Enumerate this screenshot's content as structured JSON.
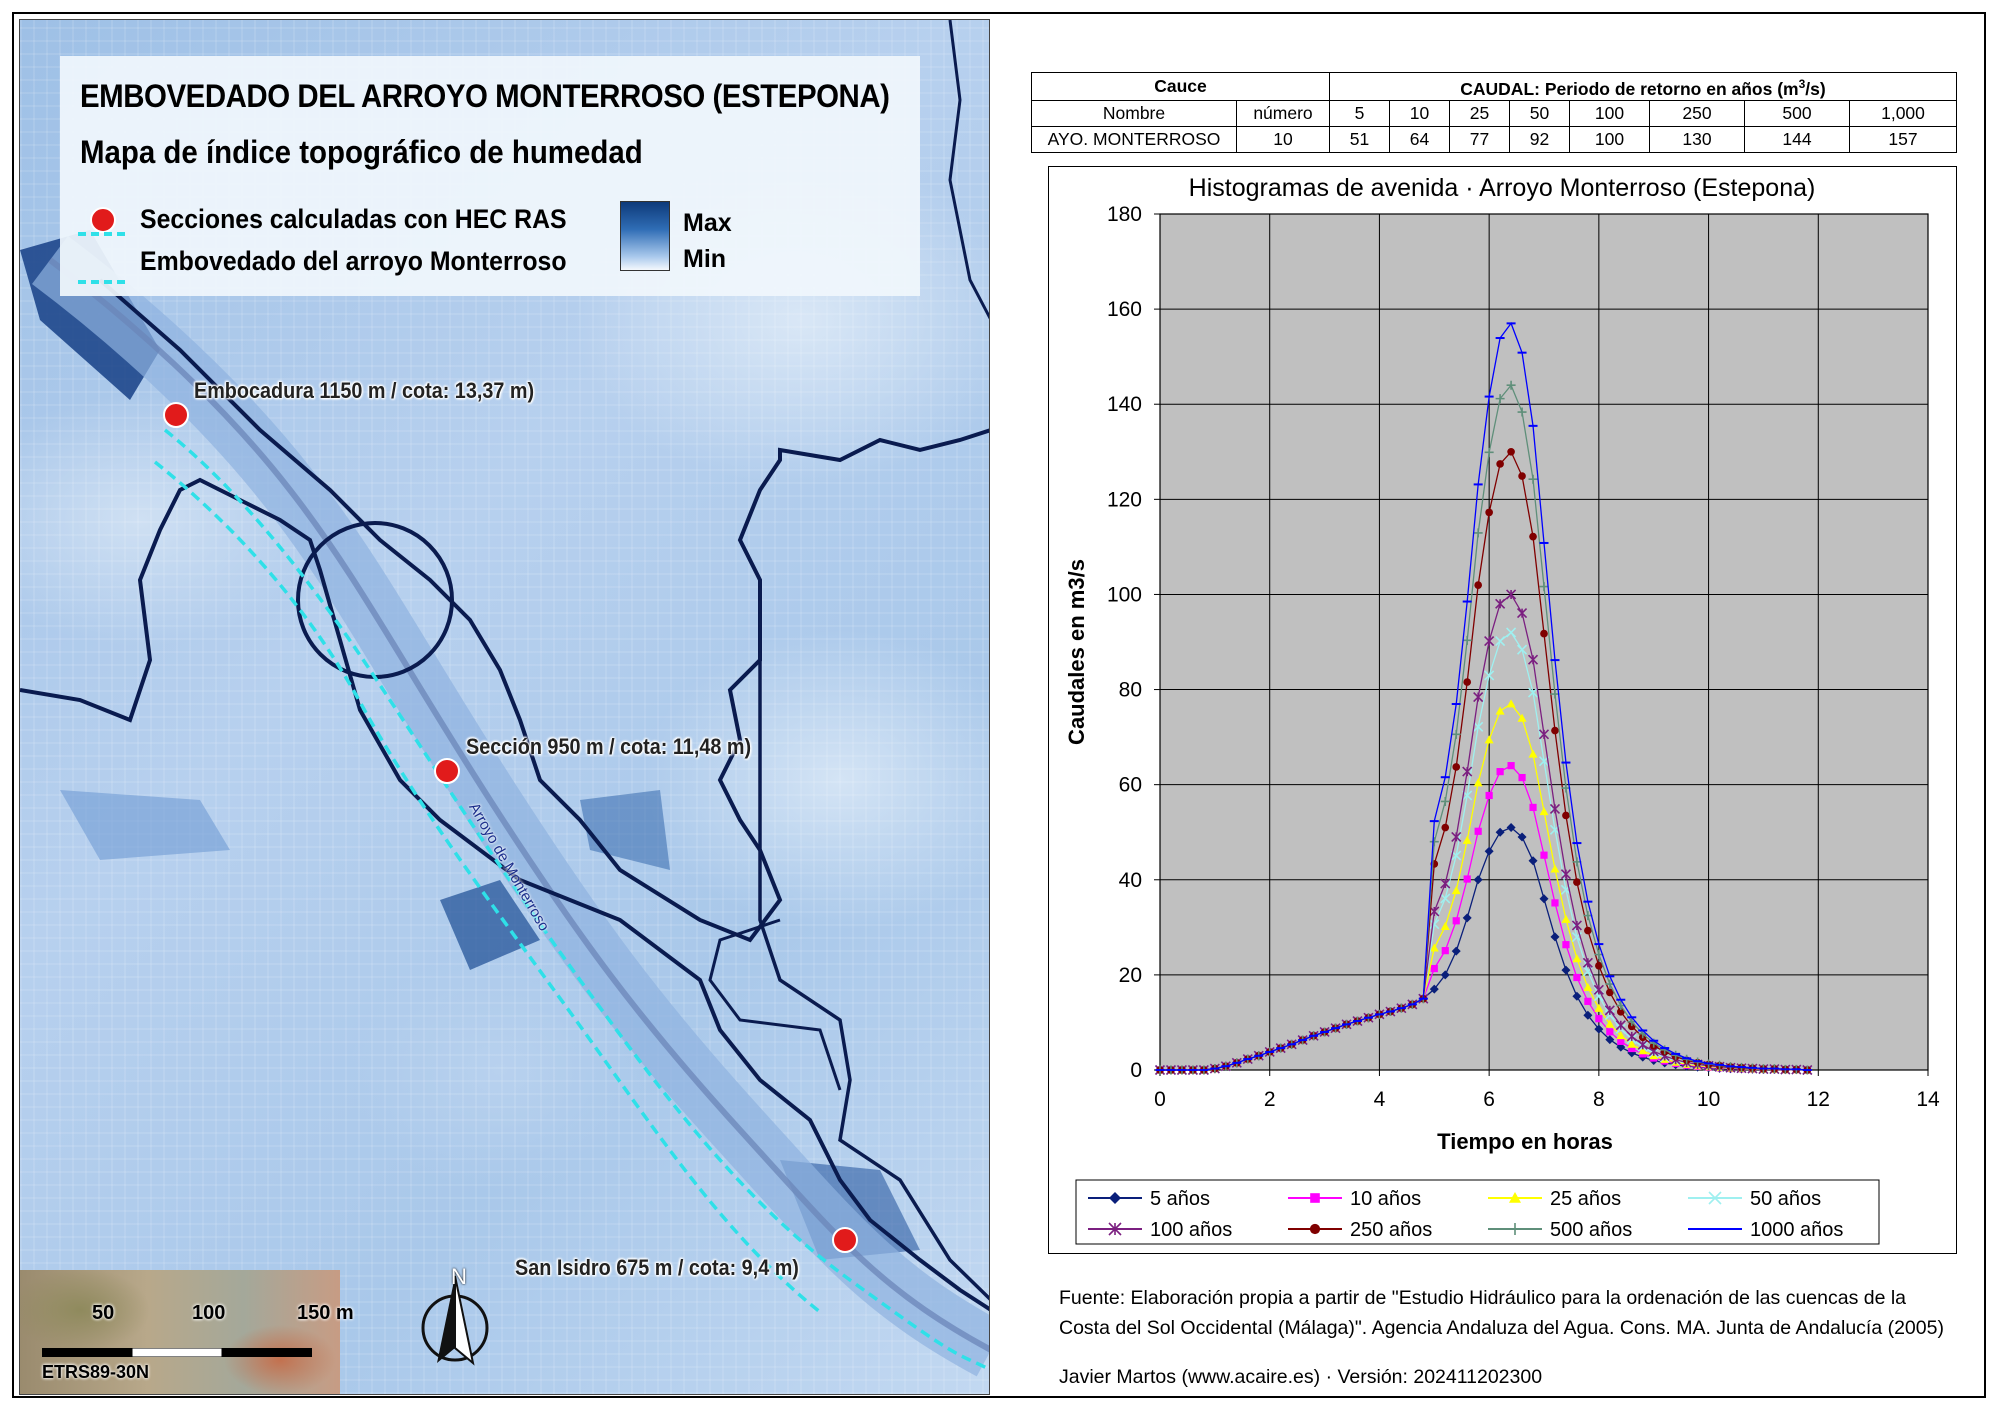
{
  "map": {
    "title": "EMBOVEDADO DEL ARROYO MONTERROSO (ESTEPONA)",
    "subtitle": "Mapa de índice topográfico de humedad",
    "legend": {
      "points_label": "Secciones calculadas con HEC RAS",
      "culvert_label": "Embovedado del arroyo Monterroso",
      "ramp_max": "Max",
      "ramp_min": "Min",
      "point_color": "#e11b1b",
      "culvert_color": "#2fe0e8"
    },
    "sections": [
      {
        "label": "Embocadura 1150 m / cota: 13,37 m)"
      },
      {
        "label": "Sección 950 m / cota: 11,48 m)"
      },
      {
        "label": "San Isidro 675 m / cota: 9,4 m)"
      }
    ],
    "stream_label": "Arroyo de Monterroso",
    "scale": {
      "ticks": [
        "50",
        "100",
        "150 m"
      ],
      "crs": "ETRS89-30N"
    },
    "north": "N"
  },
  "table": {
    "header_cauce": "Cauce",
    "header_caudal_prefix": "CAUDAL: Periodo de retorno en años (m",
    "header_caudal_sup": "3",
    "header_caudal_suffix": "/s)",
    "col_nombre": "Nombre",
    "col_numero": "número",
    "periods": [
      "5",
      "10",
      "25",
      "50",
      "100",
      "250",
      "500",
      "1,000"
    ],
    "row": {
      "nombre": "AYO. MONTERROSO",
      "numero": "10",
      "values": [
        "51",
        "64",
        "77",
        "92",
        "100",
        "130",
        "144",
        "157"
      ]
    }
  },
  "chart_data": {
    "type": "line",
    "title": "Histogramas de avenida · Arroyo Monterroso (Estepona)",
    "xlabel": "Tiempo en horas",
    "ylabel": "Caudales en m3/s",
    "xlim": [
      0,
      14
    ],
    "ylim": [
      0,
      180
    ],
    "xticks": [
      "0",
      "2",
      "4",
      "6",
      "8",
      "10",
      "12",
      "14"
    ],
    "yticks": [
      "0",
      "20",
      "40",
      "60",
      "80",
      "100",
      "120",
      "140",
      "160",
      "180"
    ],
    "grid": true,
    "plot_background": "#c0c0c0",
    "legend_position": "bottom",
    "x": [
      0,
      0.2,
      0.4,
      0.6,
      0.8,
      1.0,
      1.2,
      1.4,
      1.6,
      1.8,
      2.0,
      2.2,
      2.4,
      2.6,
      2.8,
      3.0,
      3.2,
      3.4,
      3.6,
      3.8,
      4.0,
      4.2,
      4.4,
      4.6,
      4.8,
      5.0,
      5.2,
      5.4,
      5.6,
      5.8,
      6.0,
      6.2,
      6.4,
      6.6,
      6.8,
      7.0,
      7.2,
      7.4,
      7.6,
      7.8,
      8.0,
      8.2,
      8.4,
      8.6,
      8.8,
      9.0,
      9.2,
      9.4,
      9.6,
      9.8,
      10.0,
      10.2,
      10.4,
      10.6,
      10.8,
      11.0,
      11.2,
      11.4,
      11.6,
      11.8
    ],
    "base_values": [
      0,
      0,
      0,
      0,
      0,
      0.3,
      0.8,
      1.5,
      2.3,
      3.0,
      3.8,
      4.6,
      5.4,
      6.3,
      7.2,
      8.0,
      8.8,
      9.6,
      10.3,
      11.0,
      11.7,
      12.3,
      13.0,
      13.8,
      15.0,
      17.0,
      20.0,
      25.0,
      32.0,
      40.0,
      46.0,
      50.0,
      51.0,
      49.0,
      44.0,
      36.0,
      28.0,
      21.0,
      15.5,
      11.5,
      8.6,
      6.4,
      4.8,
      3.6,
      2.7,
      2.0,
      1.5,
      1.1,
      0.8,
      0.6,
      0.45,
      0.35,
      0.25,
      0.2,
      0.15,
      0.1,
      0.1,
      0.05,
      0.05,
      0
    ],
    "series": [
      {
        "name": "5 años",
        "peak": 51,
        "color": "#0a1f7a",
        "marker": "diamond"
      },
      {
        "name": "10 años",
        "peak": 64,
        "color": "#ff00ff",
        "marker": "square"
      },
      {
        "name": "25 años",
        "peak": 77,
        "color": "#ffff00",
        "marker": "triangle"
      },
      {
        "name": "50 años",
        "peak": 92,
        "color": "#9ff0f0",
        "marker": "x"
      },
      {
        "name": "100 años",
        "peak": 100,
        "color": "#7b1f80",
        "marker": "star"
      },
      {
        "name": "250 años",
        "peak": 130,
        "color": "#800000",
        "marker": "circle"
      },
      {
        "name": "500 años",
        "peak": 144,
        "color": "#5f8f7a",
        "marker": "plus"
      },
      {
        "name": "1000 años",
        "peak": 157,
        "color": "#0000ff",
        "marker": "dash"
      }
    ]
  },
  "footer": {
    "source_line1": "Fuente: Elaboración propia a partir de \"Estudio Hidráulico para la ordenación de las cuencas de la",
    "source_line2": "Costa del Sol Occidental (Málaga)\". Agencia Andaluza del Agua. Cons. MA. Junta de Andalucía (2005)",
    "author": "Javier Martos (www.acaire.es) · Versión: 202411202300"
  }
}
